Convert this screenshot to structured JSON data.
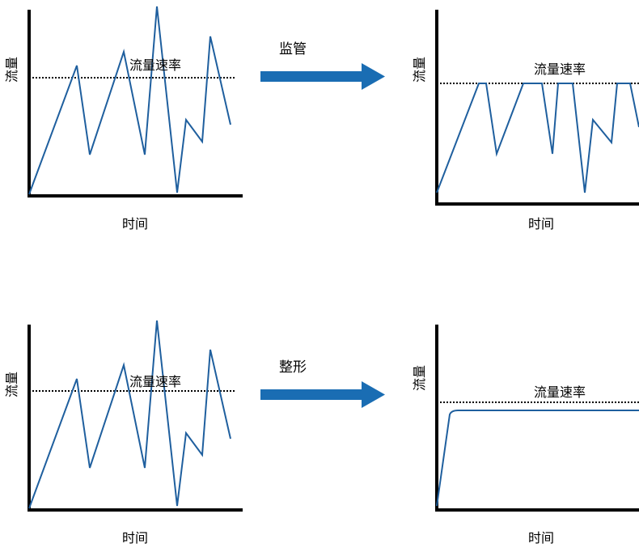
{
  "colors": {
    "traffic": "#1f5f9e",
    "arrow": "#1a6db3",
    "axis": "#000000"
  },
  "axis_labels": {
    "y": "流量",
    "x": "时间",
    "rate_line": "流量速率"
  },
  "arrows": {
    "policing": "监管",
    "shaping": "整形"
  },
  "panels": [
    {
      "id": "policing-before",
      "y_label": "流量",
      "x_label": "时间",
      "rate_label": "流量速率"
    },
    {
      "id": "policing-after",
      "y_label": "流量",
      "x_label": "时间",
      "rate_label": "流量速率"
    },
    {
      "id": "shaping-before",
      "y_label": "流量",
      "x_label": "时间",
      "rate_label": "流量速率"
    },
    {
      "id": "shaping-after",
      "y_label": "流量",
      "x_label": "时间",
      "rate_label": "流量速率"
    }
  ]
}
